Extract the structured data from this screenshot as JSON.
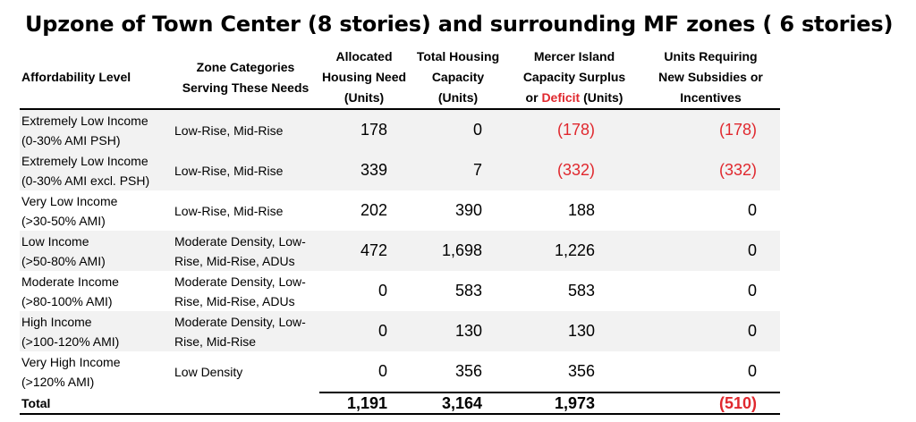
{
  "title": "Upzone of Town Center (8 stories) and surrounding MF zones ( 6 stories)",
  "headers": {
    "affordability": "Affordability Level",
    "zone_l1": "Zone Categories",
    "zone_l2": "Serving These Needs",
    "allocated_l1": "Allocated",
    "allocated_l2": "Housing Need",
    "allocated_l3": "(Units)",
    "capacity_l1": "Total Housing",
    "capacity_l2": "Capacity",
    "capacity_l3": "(Units)",
    "surplus_l1": "Mercer Island",
    "surplus_l2": "Capacity Surplus",
    "surplus_l3_a": "or ",
    "surplus_l3_red": "Deficit",
    "surplus_l3_b": " (Units)",
    "subsidy_l1": "Units Requiring",
    "subsidy_l2": "New Subsidies or",
    "subsidy_l3": "Incentives"
  },
  "colors": {
    "deficit_red": "#e0282e",
    "row_shade": "#f2f2f2"
  },
  "rows": [
    {
      "level_l1": "Extremely Low Income",
      "level_l2": "(0-30% AMI PSH)",
      "zone_l1": "Low-Rise, Mid-Rise",
      "zone_l2": "",
      "allocated": "178",
      "capacity": "0",
      "surplus": "(178)",
      "subsidy": "(178)"
    },
    {
      "level_l1": "Extremely Low Income",
      "level_l2": "(0-30% AMI excl. PSH)",
      "zone_l1": "Low-Rise, Mid-Rise",
      "zone_l2": "",
      "allocated": "339",
      "capacity": "7",
      "surplus": "(332)",
      "subsidy": "(332)"
    },
    {
      "level_l1": "Very Low Income",
      "level_l2": "(>30-50% AMI)",
      "zone_l1": "Low-Rise, Mid-Rise",
      "zone_l2": "",
      "allocated": "202",
      "capacity": "390",
      "surplus": "188",
      "subsidy": "0"
    },
    {
      "level_l1": "Low Income",
      "level_l2": "(>50-80% AMI)",
      "zone_l1": "Moderate Density, Low-",
      "zone_l2": "Rise, Mid-Rise, ADUs",
      "allocated": "472",
      "capacity": "1,698",
      "surplus": "1,226",
      "subsidy": "0"
    },
    {
      "level_l1": "Moderate Income",
      "level_l2": "(>80-100% AMI)",
      "zone_l1": "Moderate Density, Low-",
      "zone_l2": "Rise, Mid-Rise, ADUs",
      "allocated": "0",
      "capacity": "583",
      "surplus": "583",
      "subsidy": "0"
    },
    {
      "level_l1": "High Income",
      "level_l2": "(>100-120% AMI)",
      "zone_l1": "Moderate Density, Low-",
      "zone_l2": "Rise, Mid-Rise",
      "allocated": "0",
      "capacity": "130",
      "surplus": "130",
      "subsidy": "0"
    },
    {
      "level_l1": "Very High Income",
      "level_l2": "(>120% AMI)",
      "zone_l1": "Low Density",
      "zone_l2": "",
      "allocated": "0",
      "capacity": "356",
      "surplus": "356",
      "subsidy": "0"
    }
  ],
  "total": {
    "label": "Total",
    "allocated": "1,191",
    "capacity": "3,164",
    "surplus": "1,973",
    "subsidy": "(510)"
  }
}
